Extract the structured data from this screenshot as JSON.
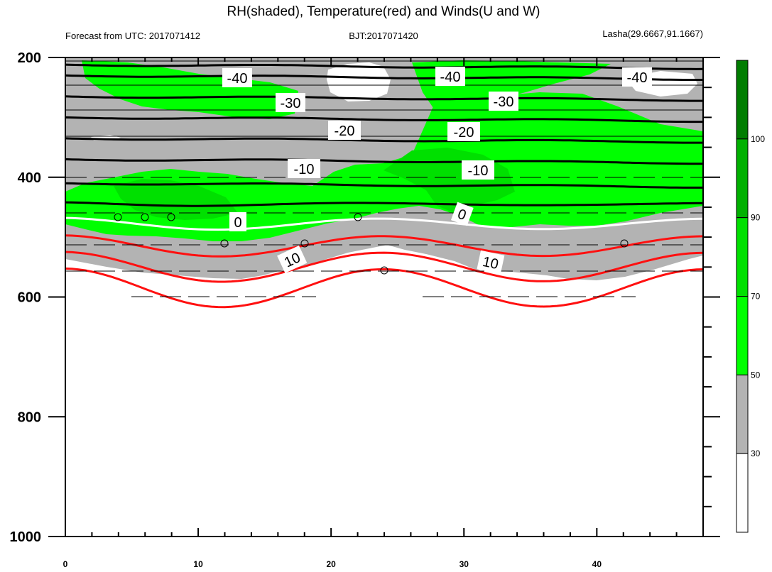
{
  "chart_data": {
    "type": "contour",
    "title": "RH(shaded), Temperature(red) and Winds(U and W)",
    "left_string": "Forecast from UTC: 2017071412",
    "center_string": "BJT:2017071420",
    "right_string": "Lasha(29.6667,91.1667)",
    "x_ticks": [
      0,
      10,
      20,
      30,
      40
    ],
    "x_range": [
      0,
      48
    ],
    "y_ticks": [
      200,
      400,
      600,
      800,
      1000
    ],
    "y_range": [
      200,
      1000
    ],
    "y_reversed": true,
    "colorbar": {
      "levels": [
        30,
        50,
        70,
        90,
        100
      ],
      "colors": [
        "#ffffff",
        "#b3b3b3",
        "#00ff00",
        "#00e000",
        "#00b000",
        "#007d00"
      ]
    },
    "temperature_labels": [
      "-40",
      "-40",
      "-40",
      "-30",
      "-30",
      "-20",
      "-20",
      "-10",
      "-10",
      "0",
      "0",
      "10",
      "10"
    ],
    "isotherm_levels": [
      -40,
      -35,
      -30,
      -25,
      -20,
      -15,
      -10,
      -5,
      0,
      5,
      10,
      15
    ],
    "isotherm_pressure_at_x0": [
      212,
      230,
      265,
      300,
      335,
      370,
      410,
      445,
      478,
      515,
      550,
      585
    ]
  }
}
